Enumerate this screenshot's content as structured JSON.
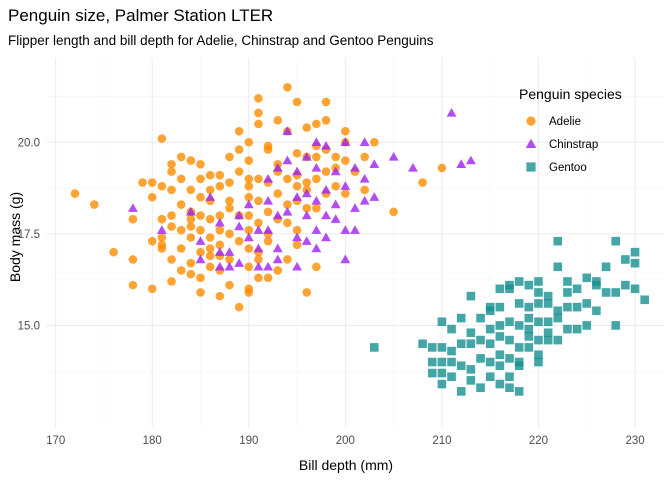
{
  "chart_data": {
    "type": "scatter",
    "title": "Penguin size, Palmer Station LTER",
    "subtitle": "Flipper length and bill depth for Adelie, Chinstrap and Gentoo Penguins",
    "xlabel": "Bill depth (mm)",
    "ylabel": "Body mass (g)",
    "xlim": [
      169,
      233
    ],
    "ylim": [
      12.2,
      22.3
    ],
    "xticks": [
      170,
      180,
      190,
      200,
      210,
      220,
      230
    ],
    "yticks": [
      15.0,
      17.5,
      20.0
    ],
    "ytick_labels": [
      "15.0",
      "17.5",
      "20.0"
    ],
    "grid": true,
    "legend": {
      "title": "Penguin species",
      "position": "top-right"
    },
    "series": [
      {
        "name": "Adelie",
        "marker": "circle",
        "color": "#FF8C00",
        "points": [
          [
            172,
            18.6
          ],
          [
            174,
            18.3
          ],
          [
            176,
            17.0
          ],
          [
            178,
            16.8
          ],
          [
            178,
            16.1
          ],
          [
            179,
            18.9
          ],
          [
            180,
            18.9
          ],
          [
            180,
            18.5
          ],
          [
            181,
            18.8
          ],
          [
            181,
            17.9
          ],
          [
            181,
            17.4
          ],
          [
            181,
            17.2
          ],
          [
            181,
            17.1
          ],
          [
            182,
            19.4
          ],
          [
            182,
            18.7
          ],
          [
            182,
            18.0
          ],
          [
            182,
            17.7
          ],
          [
            182,
            16.8
          ],
          [
            183,
            19.0
          ],
          [
            183,
            18.3
          ],
          [
            183,
            17.6
          ],
          [
            183,
            16.5
          ],
          [
            184,
            19.5
          ],
          [
            184,
            18.7
          ],
          [
            184,
            18.1
          ],
          [
            184,
            17.7
          ],
          [
            184,
            17.4
          ],
          [
            185,
            19.0
          ],
          [
            185,
            18.5
          ],
          [
            185,
            18.0
          ],
          [
            185,
            17.6
          ],
          [
            185,
            17.0
          ],
          [
            185,
            16.3
          ],
          [
            186,
            19.1
          ],
          [
            186,
            18.4
          ],
          [
            186,
            17.9
          ],
          [
            186,
            17.4
          ],
          [
            186,
            17.1
          ],
          [
            187,
            19.1
          ],
          [
            187,
            18.0
          ],
          [
            187,
            17.6
          ],
          [
            187,
            17.2
          ],
          [
            187,
            16.5
          ],
          [
            188,
            18.9
          ],
          [
            188,
            18.4
          ],
          [
            188,
            17.5
          ],
          [
            188,
            16.8
          ],
          [
            189,
            19.2
          ],
          [
            189,
            18.0
          ],
          [
            189,
            17.3
          ],
          [
            190,
            20.0
          ],
          [
            190,
            19.5
          ],
          [
            190,
            19.0
          ],
          [
            190,
            18.5
          ],
          [
            190,
            18.0
          ],
          [
            190,
            17.6
          ],
          [
            190,
            17.1
          ],
          [
            190,
            16.6
          ],
          [
            191,
            21.2
          ],
          [
            191,
            20.5
          ],
          [
            191,
            19.0
          ],
          [
            191,
            18.4
          ],
          [
            191,
            17.8
          ],
          [
            191,
            17.0
          ],
          [
            191,
            16.3
          ],
          [
            192,
            19.8
          ],
          [
            192,
            18.9
          ],
          [
            192,
            18.1
          ],
          [
            192,
            17.3
          ],
          [
            193,
            20.6
          ],
          [
            193,
            19.4
          ],
          [
            193,
            18.6
          ],
          [
            193,
            17.9
          ],
          [
            194,
            21.5
          ],
          [
            194,
            20.3
          ],
          [
            194,
            18.3
          ],
          [
            195,
            21.1
          ],
          [
            195,
            19.7
          ],
          [
            195,
            19.1
          ],
          [
            195,
            18.4
          ],
          [
            195,
            17.6
          ],
          [
            196,
            20.4
          ],
          [
            196,
            19.6
          ],
          [
            196,
            18.9
          ],
          [
            196,
            18.2
          ],
          [
            197,
            20.5
          ],
          [
            197,
            19.6
          ],
          [
            197,
            19.0
          ],
          [
            197,
            18.2
          ],
          [
            198,
            21.1
          ],
          [
            198,
            19.8
          ],
          [
            198,
            19.2
          ],
          [
            198,
            18.6
          ],
          [
            199,
            19.3
          ],
          [
            200,
            20.3
          ],
          [
            200,
            19.5
          ],
          [
            200,
            18.6
          ],
          [
            201,
            19.2
          ],
          [
            202,
            19.6
          ],
          [
            202,
            18.7
          ],
          [
            203,
            20.0
          ],
          [
            205,
            18.1
          ],
          [
            208,
            18.9
          ],
          [
            210,
            19.3
          ],
          [
            199,
            18.8
          ],
          [
            184,
            16.4
          ],
          [
            185,
            15.9
          ],
          [
            186,
            16.9
          ],
          [
            187,
            15.8
          ],
          [
            188,
            16.1
          ],
          [
            189,
            15.5
          ],
          [
            190,
            16.0
          ],
          [
            192,
            16.3
          ],
          [
            193,
            16.5
          ],
          [
            183,
            19.6
          ],
          [
            180,
            16.0
          ],
          [
            182,
            16.2
          ],
          [
            194,
            16.8
          ],
          [
            196,
            15.9
          ],
          [
            181,
            20.1
          ],
          [
            188,
            19.6
          ],
          [
            189,
            20.3
          ],
          [
            191,
            20.8
          ],
          [
            192,
            19.9
          ],
          [
            187,
            18.8
          ],
          [
            184,
            17.9
          ],
          [
            186,
            18.7
          ],
          [
            188,
            18.2
          ],
          [
            190,
            18.8
          ],
          [
            194,
            19.0
          ],
          [
            195,
            18.8
          ],
          [
            197,
            19.9
          ],
          [
            199,
            19.6
          ],
          [
            182,
            19.2
          ],
          [
            185,
            19.4
          ],
          [
            189,
            19.8
          ],
          [
            193,
            19.2
          ],
          [
            196,
            18.7
          ],
          [
            198,
            20.6
          ],
          [
            200,
            20.0
          ],
          [
            183,
            17.1
          ],
          [
            186,
            16.6
          ],
          [
            190,
            15.9
          ],
          [
            192,
            17.5
          ],
          [
            195,
            17.2
          ],
          [
            197,
            16.6
          ],
          [
            178,
            17.9
          ],
          [
            180,
            17.3
          ],
          [
            184,
            16.7
          ],
          [
            187,
            16.9
          ],
          [
            191,
            16.8
          ],
          [
            194,
            17.8
          ]
        ]
      },
      {
        "name": "Chinstrap",
        "marker": "triangle",
        "color": "#A020F0",
        "points": [
          [
            178,
            18.2
          ],
          [
            181,
            17.6
          ],
          [
            185,
            17.3
          ],
          [
            186,
            18.5
          ],
          [
            187,
            17.8
          ],
          [
            187,
            17.0
          ],
          [
            187,
            16.6
          ],
          [
            188,
            17.0
          ],
          [
            188,
            16.6
          ],
          [
            189,
            18.0
          ],
          [
            189,
            16.7
          ],
          [
            190,
            18.3
          ],
          [
            190,
            17.4
          ],
          [
            191,
            17.6
          ],
          [
            191,
            17.1
          ],
          [
            191,
            16.6
          ],
          [
            192,
            19.0
          ],
          [
            192,
            18.4
          ],
          [
            192,
            17.6
          ],
          [
            192,
            16.6
          ],
          [
            193,
            19.3
          ],
          [
            193,
            18.0
          ],
          [
            193,
            17.1
          ],
          [
            194,
            20.3
          ],
          [
            194,
            19.5
          ],
          [
            194,
            18.1
          ],
          [
            195,
            19.2
          ],
          [
            195,
            18.5
          ],
          [
            195,
            17.4
          ],
          [
            196,
            19.6
          ],
          [
            196,
            18.6
          ],
          [
            196,
            18.0
          ],
          [
            196,
            17.3
          ],
          [
            197,
            20.0
          ],
          [
            197,
            19.3
          ],
          [
            197,
            18.4
          ],
          [
            197,
            17.6
          ],
          [
            198,
            19.9
          ],
          [
            198,
            18.7
          ],
          [
            198,
            18.0
          ],
          [
            199,
            19.2
          ],
          [
            199,
            18.3
          ],
          [
            200,
            20.0
          ],
          [
            200,
            18.8
          ],
          [
            200,
            17.6
          ],
          [
            201,
            19.3
          ],
          [
            201,
            18.2
          ],
          [
            201,
            17.6
          ],
          [
            202,
            20.0
          ],
          [
            202,
            19.0
          ],
          [
            202,
            18.4
          ],
          [
            203,
            19.4
          ],
          [
            203,
            18.5
          ],
          [
            205,
            19.6
          ],
          [
            207,
            19.3
          ],
          [
            211,
            20.8
          ],
          [
            212,
            19.4
          ],
          [
            213,
            19.5
          ],
          [
            184,
            18.1
          ],
          [
            185,
            16.8
          ],
          [
            189,
            17.7
          ],
          [
            193,
            16.8
          ],
          [
            195,
            16.6
          ],
          [
            197,
            17.1
          ],
          [
            200,
            16.8
          ],
          [
            199,
            17.9
          ],
          [
            198,
            17.4
          ]
        ]
      },
      {
        "name": "Gentoo",
        "marker": "square",
        "color": "#159090",
        "points": [
          [
            203,
            14.4
          ],
          [
            208,
            14.5
          ],
          [
            209,
            14.4
          ],
          [
            209,
            14.0
          ],
          [
            209,
            13.7
          ],
          [
            210,
            15.1
          ],
          [
            210,
            14.4
          ],
          [
            210,
            14.0
          ],
          [
            210,
            13.7
          ],
          [
            210,
            13.4
          ],
          [
            211,
            14.3
          ],
          [
            211,
            14.0
          ],
          [
            211,
            13.6
          ],
          [
            212,
            14.5
          ],
          [
            212,
            13.9
          ],
          [
            212,
            13.2
          ],
          [
            213,
            14.5
          ],
          [
            213,
            13.8
          ],
          [
            213,
            13.5
          ],
          [
            214,
            14.6
          ],
          [
            214,
            14.1
          ],
          [
            214,
            13.3
          ],
          [
            215,
            15.5
          ],
          [
            215,
            14.5
          ],
          [
            215,
            14.0
          ],
          [
            215,
            13.6
          ],
          [
            216,
            16.0
          ],
          [
            216,
            15.5
          ],
          [
            216,
            14.7
          ],
          [
            216,
            14.2
          ],
          [
            216,
            13.4
          ],
          [
            217,
            16.0
          ],
          [
            217,
            15.1
          ],
          [
            217,
            14.6
          ],
          [
            217,
            14.1
          ],
          [
            217,
            13.6
          ],
          [
            217,
            13.3
          ],
          [
            218,
            15.0
          ],
          [
            218,
            14.4
          ],
          [
            218,
            14.0
          ],
          [
            218,
            13.2
          ],
          [
            219,
            15.5
          ],
          [
            219,
            14.9
          ],
          [
            219,
            14.4
          ],
          [
            220,
            16.2
          ],
          [
            220,
            15.6
          ],
          [
            220,
            15.1
          ],
          [
            220,
            14.6
          ],
          [
            220,
            14.2
          ],
          [
            221,
            15.6
          ],
          [
            221,
            15.1
          ],
          [
            221,
            14.6
          ],
          [
            222,
            15.2
          ],
          [
            222,
            14.6
          ],
          [
            223,
            15.5
          ],
          [
            223,
            14.9
          ],
          [
            224,
            15.5
          ],
          [
            224,
            14.9
          ],
          [
            225,
            16.3
          ],
          [
            225,
            15.6
          ],
          [
            225,
            15.0
          ],
          [
            226,
            16.2
          ],
          [
            226,
            15.4
          ],
          [
            227,
            16.6
          ],
          [
            227,
            15.9
          ],
          [
            228,
            17.3
          ],
          [
            228,
            15.9
          ],
          [
            228,
            15.0
          ],
          [
            229,
            16.8
          ],
          [
            229,
            16.1
          ],
          [
            230,
            17.0
          ],
          [
            230,
            16.7
          ],
          [
            230,
            16.0
          ],
          [
            231,
            15.7
          ],
          [
            216,
            15.0
          ],
          [
            219,
            16.1
          ],
          [
            222,
            17.3
          ],
          [
            222,
            16.6
          ],
          [
            223,
            15.9
          ],
          [
            221,
            15.8
          ],
          [
            217,
            16.1
          ],
          [
            213,
            15.8
          ],
          [
            214,
            15.2
          ],
          [
            215,
            15.4
          ],
          [
            215,
            14.9
          ],
          [
            218,
            16.2
          ],
          [
            218,
            15.6
          ],
          [
            219,
            14.7
          ],
          [
            220,
            15.9
          ],
          [
            224,
            16.0
          ],
          [
            226,
            16.1
          ],
          [
            221,
            14.8
          ],
          [
            212,
            15.2
          ],
          [
            213,
            14.8
          ],
          [
            211,
            14.9
          ],
          [
            218,
            13.9
          ],
          [
            219,
            15.2
          ],
          [
            222,
            15.4
          ],
          [
            223,
            16.2
          ],
          [
            220,
            14.0
          ],
          [
            216,
            13.9
          ]
        ]
      }
    ]
  }
}
